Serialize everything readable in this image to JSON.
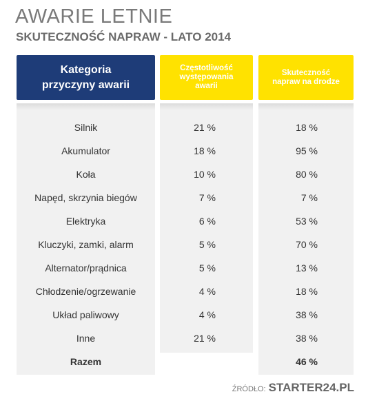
{
  "title": "AWARIE LETNIE",
  "subtitle": "SKUTECZNOŚĆ NAPRAW - LATO 2014",
  "headers": {
    "category": [
      "Kategoria",
      "przyczyny awarii"
    ],
    "frequency": [
      "Częstotliwość",
      "występowania",
      "awarii"
    ],
    "effectiveness": [
      "Skuteczność",
      "napraw na drodze"
    ]
  },
  "colors": {
    "navy": "#1e3c78",
    "yellow": "#ffe200",
    "panel": "#f1f1f1"
  },
  "chart_data": {
    "type": "table",
    "title": "AWARIE LETNIE",
    "subtitle": "SKUTECZNOŚĆ NAPRAW - LATO 2014",
    "columns": [
      "Kategoria przyczyny awarii",
      "Częstotliwość występowania awarii",
      "Skuteczność napraw na drodze"
    ],
    "rows": [
      {
        "category": "Silnik",
        "frequency": "21 %",
        "effectiveness": "18 %"
      },
      {
        "category": "Akumulator",
        "frequency": "18 %",
        "effectiveness": "95 %"
      },
      {
        "category": "Koła",
        "frequency": "10 %",
        "effectiveness": "80 %"
      },
      {
        "category": "Napęd, skrzynia biegów",
        "frequency": "7 %",
        "effectiveness": "7 %"
      },
      {
        "category": "Elektryka",
        "frequency": "6 %",
        "effectiveness": "53 %"
      },
      {
        "category": "Kluczyki, zamki, alarm",
        "frequency": "5 %",
        "effectiveness": "70 %"
      },
      {
        "category": "Alternator/prądnica",
        "frequency": "5 %",
        "effectiveness": "13 %"
      },
      {
        "category": "Chłodzenie/ogrzewanie",
        "frequency": "4 %",
        "effectiveness": "18 %"
      },
      {
        "category": "Układ paliwowy",
        "frequency": "4 %",
        "effectiveness": "38 %"
      },
      {
        "category": "Inne",
        "frequency": "21 %",
        "effectiveness": "38 %"
      }
    ],
    "total": {
      "category": "Razem",
      "frequency": "",
      "effectiveness": "46 %"
    }
  },
  "source": {
    "label": "ŹRÓDŁO:",
    "value": "STARTER24.PL"
  }
}
